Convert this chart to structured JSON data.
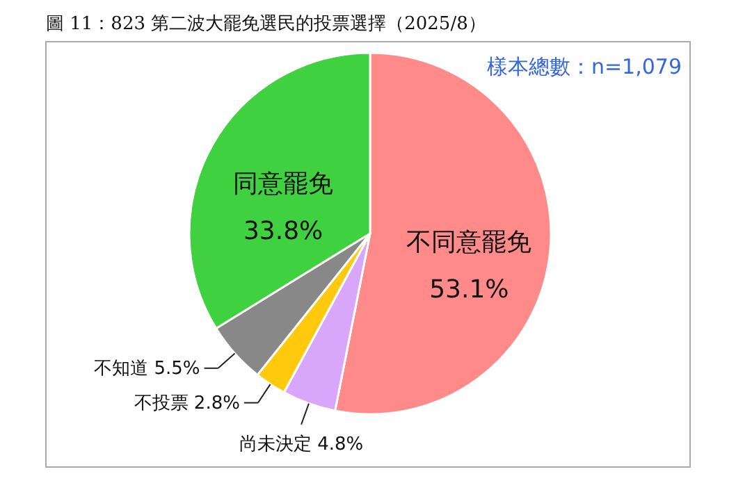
{
  "chart_data": {
    "type": "pie",
    "title": "圖 11：823 第二波大罷免選民的投票選擇（2025/8）",
    "annotations": [
      "樣本總數：n=1,079"
    ],
    "categories": [
      "不同意罷免",
      "尚未決定",
      "不投票",
      "不知道",
      "同意罷免"
    ],
    "values": [
      53.1,
      4.8,
      2.8,
      5.5,
      33.8
    ],
    "value_labels": [
      "53.1%",
      "4.8%",
      "2.8%",
      "5.5%",
      "33.8%"
    ],
    "colors": [
      "#ff8a8a",
      "#d8a6fb",
      "#ffc90e",
      "#888888",
      "#3fd13f"
    ],
    "legend": false
  }
}
